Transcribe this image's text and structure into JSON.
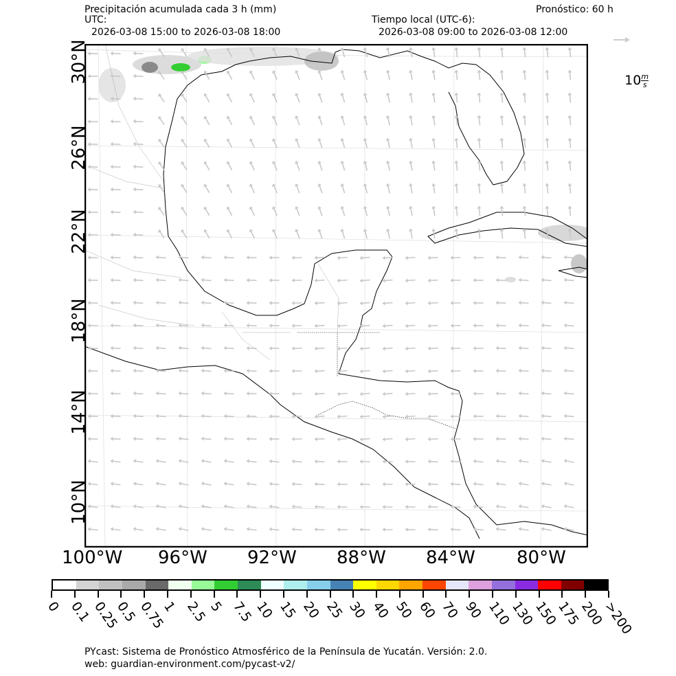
{
  "header": {
    "title": "Precipitación acumulada cada 3 h (mm)",
    "forecast": "Pronóstico: 60 h",
    "utc_label": "UTC:",
    "utc_range": "2026-03-08 15:00 to 2026-03-08 18:00",
    "local_label": "Tiempo local (UTC-6):",
    "local_range": "2026-03-08 09:00 to 2026-03-08 12:00"
  },
  "wind_legend": {
    "value": "10",
    "unit_num": "m",
    "unit_den": "s"
  },
  "map": {
    "lat_labels": [
      "30°N",
      "26°N",
      "22°N",
      "18°N",
      "14°N",
      "10°N"
    ],
    "lon_labels": [
      "100°W",
      "96°W",
      "92°W",
      "88°W",
      "84°W",
      "80°W"
    ]
  },
  "colorbar": {
    "labels": [
      "0",
      "0.1",
      "0.25",
      "0.5",
      "0.75",
      "1",
      "2.5",
      "5",
      "7.5",
      "10",
      "15",
      "20",
      "25",
      "30",
      "40",
      "50",
      "60",
      "70",
      "90",
      "110",
      "130",
      "150",
      "175",
      "200",
      ">200"
    ],
    "colors": [
      "#ffffff",
      "#d3d3d3",
      "#c0c0c0",
      "#a9a9a9",
      "#696969",
      "#f0fff0",
      "#98fb98",
      "#32cd32",
      "#2e8b57",
      "#f0ffff",
      "#afeeee",
      "#87ceeb",
      "#4682b4",
      "#ffff00",
      "#ffd700",
      "#ffa500",
      "#ff4500",
      "#e6e6fa",
      "#dda0dd",
      "#9370db",
      "#8a2be2",
      "#ff0000",
      "#800000",
      "#000000"
    ]
  },
  "footer": {
    "line1": "PYcast: Sistema de Pronóstico Atmosférico de la Península de Yucatán. Versión: 2.0.",
    "line2": "web: guardian-environment.com/pycast-v2/"
  }
}
